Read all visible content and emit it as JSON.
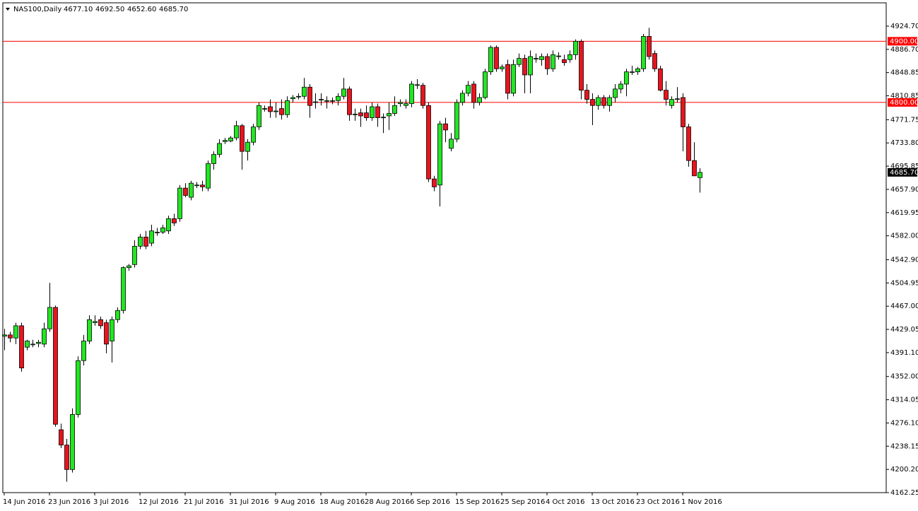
{
  "chart_data": {
    "type": "candlestick",
    "title": "NAS100,Daily",
    "header_labels": [
      "4677.10",
      "4692.50",
      "4652.60",
      "4685.70"
    ],
    "up_color": "#22e622",
    "down_color": "#e8141e",
    "categories": [
      "14 Jun 2016",
      null,
      null,
      null,
      null,
      null,
      null,
      null,
      "23 Jun 2016",
      null,
      null,
      null,
      null,
      null,
      null,
      null,
      "3 Jul 2016",
      null,
      null,
      null,
      null,
      null,
      null,
      null,
      "12 Jul 2016",
      null,
      null,
      null,
      null,
      null,
      null,
      null,
      "21 Jul 2016",
      null,
      null,
      null,
      null,
      null,
      null,
      null,
      "31 Jul 2016",
      null,
      null,
      null,
      null,
      null,
      null,
      null,
      "9 Aug 2016",
      null,
      null,
      null,
      null,
      null,
      null,
      null,
      "18 Aug 2016",
      null,
      null,
      null,
      null,
      null,
      null,
      null,
      "28 Aug 2016",
      null,
      null,
      null,
      null,
      null,
      null,
      null,
      "6 Sep 2016",
      null,
      null,
      null,
      null,
      null,
      null,
      null,
      "15 Sep 2016",
      null,
      null,
      null,
      null,
      null,
      null,
      null,
      "25 Sep 2016",
      null,
      null,
      null,
      null,
      null,
      null,
      null,
      "4 Oct 2016",
      null,
      null,
      null,
      null,
      null,
      null,
      null,
      "13 Oct 2016",
      null,
      null,
      null,
      null,
      null,
      null,
      null,
      "23 Oct 2016",
      null,
      null,
      null,
      null,
      null,
      null,
      null,
      "1 Nov 2016",
      null,
      null,
      null
    ],
    "open": [
      4418,
      4420,
      4415,
      4435,
      4400,
      4405,
      4406,
      4405,
      4430,
      4465,
      4265,
      4240,
      4200,
      4290,
      4378,
      4410,
      4440,
      4445,
      4440,
      4410,
      4445,
      4460,
      4530,
      4535,
      4565,
      4580,
      4570,
      4588,
      4588,
      4590,
      4610,
      4610,
      4660,
      4645,
      4665,
      4665,
      4660,
      4700,
      4715,
      4736,
      4737,
      4742,
      4762,
      4720,
      4735,
      4760,
      4790,
      4793,
      4785,
      4790,
      4780,
      4806,
      4810,
      4810,
      4825,
      4800,
      4805,
      4802,
      4803,
      4803,
      4810,
      4822,
      4780,
      4783,
      4783,
      4775,
      4793,
      4775,
      4778,
      4782,
      4798,
      4795,
      4798,
      4828,
      4828,
      4795,
      4675,
      4665,
      4765,
      4725,
      4740,
      4800,
      4815,
      4830,
      4800,
      4808,
      4850,
      4890,
      4855,
      4862,
      4815,
      4862,
      4872,
      4845,
      4872,
      4870,
      4875,
      4855,
      4876,
      4870,
      4870,
      4878,
      4900,
      4820,
      4805,
      4795,
      4808,
      4795,
      4808,
      4822,
      4830,
      4850,
      4850,
      4855,
      4908,
      4880,
      4855,
      4820,
      4795,
      4805,
      4808,
      4760,
      4705,
      4677.1
    ],
    "high": [
      4430,
      4425,
      4440,
      4440,
      4412,
      4412,
      4412,
      4440,
      4505,
      4468,
      4275,
      4250,
      4300,
      4385,
      4420,
      4452,
      4452,
      4450,
      4445,
      4450,
      4465,
      4532,
      4536,
      4575,
      4585,
      4590,
      4600,
      4595,
      4600,
      4615,
      4618,
      4665,
      4668,
      4672,
      4670,
      4672,
      4705,
      4720,
      4740,
      4742,
      4745,
      4770,
      4765,
      4740,
      4765,
      4800,
      4795,
      4805,
      4800,
      4805,
      4810,
      4812,
      4815,
      4840,
      4830,
      4815,
      4815,
      4810,
      4808,
      4815,
      4840,
      4826,
      4790,
      4790,
      4795,
      4800,
      4798,
      4782,
      4800,
      4810,
      4805,
      4805,
      4835,
      4838,
      4832,
      4800,
      4680,
      4770,
      4775,
      4750,
      4805,
      4820,
      4835,
      4835,
      4815,
      4855,
      4893,
      4893,
      4862,
      4870,
      4870,
      4880,
      4878,
      4885,
      4880,
      4880,
      4880,
      4885,
      4882,
      4878,
      4885,
      4903,
      4903,
      4830,
      4815,
      4812,
      4812,
      4812,
      4830,
      4835,
      4855,
      4860,
      4858,
      4912,
      4922,
      4885,
      4860,
      4835,
      4810,
      4825,
      4815,
      4765,
      4735,
      4692.5
    ],
    "low": [
      4395,
      4408,
      4405,
      4360,
      4395,
      4400,
      4400,
      4400,
      4425,
      4270,
      4235,
      4180,
      4195,
      4285,
      4370,
      4405,
      4435,
      4430,
      4390,
      4375,
      4440,
      4455,
      4525,
      4530,
      4560,
      4560,
      4565,
      4582,
      4585,
      4585,
      4598,
      4605,
      4645,
      4640,
      4660,
      4655,
      4655,
      4690,
      4710,
      4732,
      4735,
      4738,
      4690,
      4705,
      4730,
      4755,
      4785,
      4775,
      4775,
      4772,
      4775,
      4800,
      4805,
      4805,
      4775,
      4790,
      4795,
      4790,
      4797,
      4795,
      4805,
      4770,
      4770,
      4760,
      4770,
      4770,
      4760,
      4750,
      4755,
      4778,
      4793,
      4790,
      4792,
      4822,
      4790,
      4670,
      4655,
      4630,
      4735,
      4720,
      4735,
      4795,
      4810,
      4790,
      4795,
      4805,
      4845,
      4850,
      4850,
      4805,
      4810,
      4858,
      4815,
      4815,
      4865,
      4860,
      4845,
      4850,
      4870,
      4860,
      4865,
      4870,
      4805,
      4798,
      4763,
      4788,
      4790,
      4785,
      4800,
      4815,
      4810,
      4845,
      4845,
      4850,
      4870,
      4850,
      4818,
      4795,
      4790,
      4800,
      4720,
      4695,
      4680,
      4652.6
    ],
    "close": [
      4420,
      4415,
      4435,
      4366,
      4410,
      4405,
      4408,
      4430,
      4465,
      4274,
      4240,
      4200,
      4290,
      4378,
      4410,
      4445,
      4442,
      4435,
      4405,
      4445,
      4460,
      4530,
      4533,
      4565,
      4580,
      4565,
      4590,
      4588,
      4595,
      4610,
      4603,
      4660,
      4648,
      4668,
      4665,
      4662,
      4700,
      4715,
      4733,
      4738,
      4742,
      4762,
      4720,
      4735,
      4760,
      4795,
      4790,
      4785,
      4786,
      4780,
      4803,
      4808,
      4810,
      4825,
      4795,
      4801,
      4805,
      4803,
      4803,
      4810,
      4822,
      4780,
      4781,
      4778,
      4775,
      4793,
      4775,
      4776,
      4782,
      4795,
      4800,
      4798,
      4830,
      4829,
      4795,
      4675,
      4662,
      4765,
      4755,
      4740,
      4800,
      4815,
      4828,
      4800,
      4808,
      4850,
      4890,
      4855,
      4858,
      4815,
      4862,
      4872,
      4845,
      4875,
      4872,
      4875,
      4855,
      4878,
      4876,
      4865,
      4878,
      4900,
      4820,
      4805,
      4795,
      4808,
      4795,
      4808,
      4822,
      4830,
      4850,
      4850,
      4855,
      4908,
      4875,
      4855,
      4820,
      4805,
      4805,
      4806,
      4760,
      4705,
      4680,
      4685.7
    ],
    "ylim": [
      4162.25,
      4962.8
    ],
    "yticks": [
      {
        "value": 4924.7,
        "label": "4924.70"
      },
      {
        "value": 4886.7,
        "label": "4886.70"
      },
      {
        "value": 4848.85,
        "label": "4848.85"
      },
      {
        "value": 4810.85,
        "label": "4810.85"
      },
      {
        "value": 4771.75,
        "label": "4771.75"
      },
      {
        "value": 4733.8,
        "label": "4733.80"
      },
      {
        "value": 4695.85,
        "label": "4695.85"
      },
      {
        "value": 4657.9,
        "label": "4657.90"
      },
      {
        "value": 4619.95,
        "label": "4619.95"
      },
      {
        "value": 4582,
        "label": "4582.00"
      },
      {
        "value": 4542.9,
        "label": "4542.90"
      },
      {
        "value": 4504.95,
        "label": "4504.95"
      },
      {
        "value": 4467,
        "label": "4467.00"
      },
      {
        "value": 4429.05,
        "label": "4429.05"
      },
      {
        "value": 4391.1,
        "label": "4391.10"
      },
      {
        "value": 4352,
        "label": "4352.00"
      },
      {
        "value": 4314.05,
        "label": "4314.05"
      },
      {
        "value": 4276.1,
        "label": "4276.10"
      },
      {
        "value": 4238.15,
        "label": "4238.15"
      },
      {
        "value": 4200.2,
        "label": "4200.20"
      },
      {
        "value": 4162.25,
        "label": "4162.25"
      }
    ],
    "hlines": [
      {
        "value": 4900,
        "label": "4900.00",
        "color": "#ff0000"
      },
      {
        "value": 4800,
        "label": "4800.00",
        "color": "#ff0000"
      }
    ],
    "last_price": {
      "value": 4685.7,
      "label": "4685.70"
    }
  }
}
